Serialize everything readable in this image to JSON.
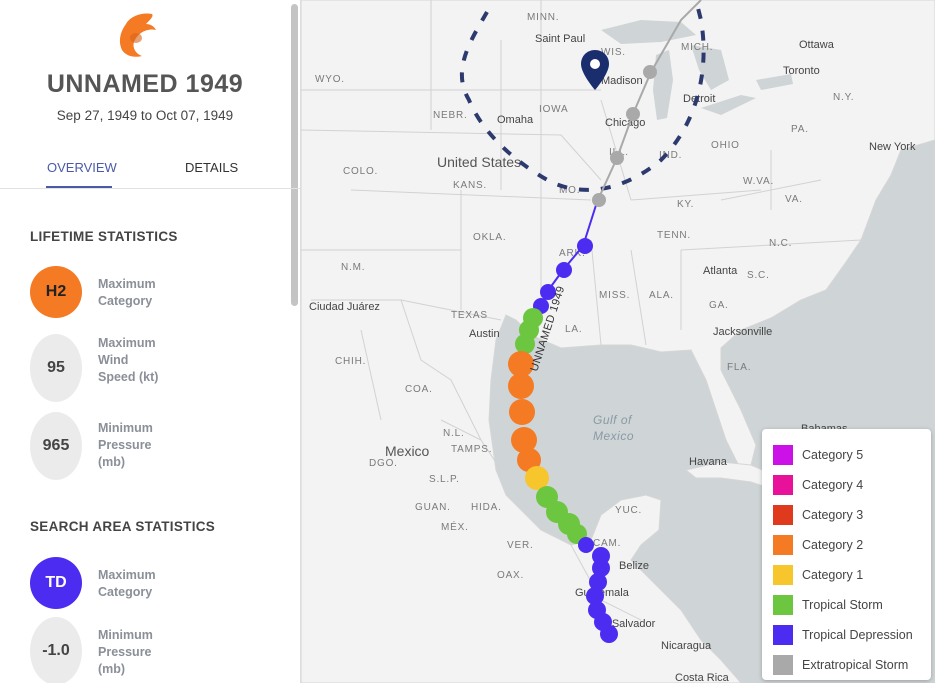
{
  "storm": {
    "title": "UNNAMED 1949",
    "dates": "Sep 27, 1949 to Oct 07, 1949",
    "track_label": "UNNAMED 1949"
  },
  "tabs": [
    {
      "label": "OVERVIEW",
      "active": true
    },
    {
      "label": "DETAILS",
      "active": false
    }
  ],
  "lifetime_stats": {
    "heading": "LIFETIME STATISTICS",
    "max_category": {
      "value": "H2",
      "label": "Maximum Category",
      "color": "#f47a24"
    },
    "max_wind": {
      "value": "95",
      "label": "Maximum Wind Speed (kt)"
    },
    "min_pressure": {
      "value": "965",
      "label": "Minimum Pressure (mb)"
    }
  },
  "search_area_stats": {
    "heading": "SEARCH AREA STATISTICS",
    "max_category": {
      "value": "TD",
      "label": "Maximum Category",
      "color": "#4b2cf0"
    },
    "min_pressure": {
      "value": "-1.0",
      "label": "Minimum Pressure (mb)"
    }
  },
  "map_labels": {
    "countries": [
      "United States",
      "Mexico"
    ],
    "sea": [
      "Gulf of",
      "Mexico"
    ],
    "states": [
      "MINN.",
      "WIS.",
      "MICH.",
      "WYO.",
      "NEBR.",
      "IOWA",
      "ILL.",
      "IND.",
      "OHIO",
      "PA.",
      "N.Y.",
      "KANS.",
      "MO.",
      "KY.",
      "W.VA.",
      "VA.",
      "COLO.",
      "OKLA.",
      "ARK.",
      "TENN.",
      "N.C.",
      "S.C.",
      "N.M.",
      "TEXAS",
      "LA.",
      "MISS.",
      "ALA.",
      "GA.",
      "FLA.",
      "CHIH.",
      "COA.",
      "N.L.",
      "TAMPS.",
      "DGO.",
      "S.L.P.",
      "GUAN.",
      "HIDA.",
      "MÉX.",
      "VER.",
      "OAX.",
      "YUC.",
      "CAM."
    ],
    "cities": [
      "Saint Paul",
      "Ottawa",
      "Madison",
      "Toronto",
      "Detroit",
      "Omaha",
      "Chicago",
      "New York",
      "Atlanta",
      "Ciudad Juárez",
      "Austin",
      "Jacksonville",
      "Havana",
      "Belize",
      "Guatemala",
      "El Salvador",
      "Nicaragua",
      "Costa Rica",
      "Bahamas"
    ]
  },
  "legend": [
    {
      "label": "Category 5",
      "color": "#cc11e8"
    },
    {
      "label": "Category 4",
      "color": "#e8129a"
    },
    {
      "label": "Category 3",
      "color": "#e03a1e"
    },
    {
      "label": "Category 2",
      "color": "#f47a24"
    },
    {
      "label": "Category 1",
      "color": "#f7c52c"
    },
    {
      "label": "Tropical Storm",
      "color": "#6cc63f"
    },
    {
      "label": "Tropical Depression",
      "color": "#4b2cf0"
    },
    {
      "label": "Extratropical Storm",
      "color": "#a9a9a9"
    }
  ],
  "colors": {
    "accent": "#4a5aa8",
    "logo": "#f47a24",
    "pin": "#1a2e6e"
  }
}
